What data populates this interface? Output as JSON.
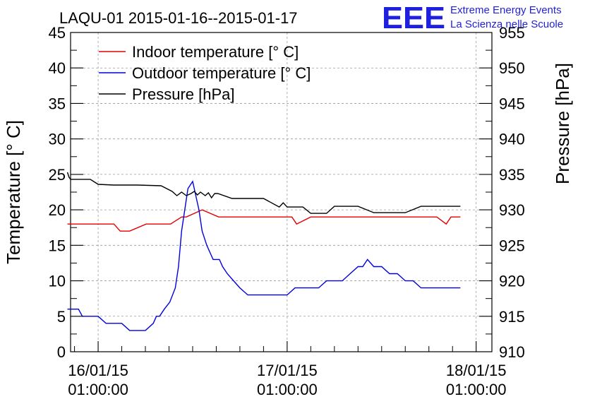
{
  "chart_data": {
    "type": "line",
    "title": "LAQU-01 2015-01-16--2015-01-17",
    "ylabel": "Temperature [° C]",
    "y2label": "Pressure [hPa]",
    "xlabel": "",
    "ylim": [
      0,
      45
    ],
    "y2lim": [
      910,
      955
    ],
    "xlim": [
      -2.5,
      51
    ],
    "x_unit": "hours since 16/01/15 00:00",
    "grid": true,
    "legend_position": "top-left",
    "y_ticks": [
      "0",
      "5",
      "10",
      "15",
      "20",
      "25",
      "30",
      "35",
      "40",
      "45"
    ],
    "y2_ticks": [
      "910",
      "915",
      "920",
      "925",
      "930",
      "935",
      "940",
      "945",
      "950",
      "955"
    ],
    "x_ticks": [
      {
        "x": 1,
        "date": "16/01/15",
        "time": "01:00:00"
      },
      {
        "x": 25,
        "date": "17/01/15",
        "time": "01:00:00"
      },
      {
        "x": 49,
        "date": "18/01/15",
        "time": "01:00:00"
      }
    ],
    "series": [
      {
        "name": "Indoor temperature [° C]",
        "color": "#e00000",
        "axis": "left",
        "x": [
          -2.9,
          0,
          3,
          3.8,
          5,
          7.1,
          10.2,
          11.6,
          12.2,
          14.2,
          16.3,
          25.6,
          26.2,
          28,
          30,
          34,
          38,
          42,
          44,
          45.2,
          45.8,
          47
        ],
        "values": [
          18,
          18,
          18,
          17,
          17,
          18,
          18,
          19,
          19,
          20,
          19,
          19,
          18,
          19,
          19,
          19,
          19,
          19,
          19,
          18,
          19,
          19
        ]
      },
      {
        "name": "Outdoor temperature [° C]",
        "color": "#0000e0",
        "axis": "left",
        "x": [
          -2.9,
          -1.5,
          -1,
          0,
          1,
          2,
          3,
          4,
          5,
          6,
          7,
          8,
          8.4,
          8.8,
          9.4,
          10.1,
          10.8,
          11.2,
          11.6,
          12,
          12.4,
          13,
          13.8,
          14.2,
          14.8,
          15.2,
          15.6,
          16,
          16.4,
          16.8,
          17.4,
          18.2,
          19,
          20,
          21,
          22,
          23,
          24,
          25,
          26,
          27,
          28,
          29,
          30,
          31,
          32,
          33,
          34,
          34.6,
          35.2,
          36,
          37,
          38,
          39,
          40,
          41,
          42,
          43,
          44,
          45,
          46,
          47
        ],
        "values": [
          6,
          6,
          5,
          5,
          5,
          4,
          4,
          4,
          3,
          3,
          3,
          4,
          5,
          5,
          6,
          7,
          9,
          12,
          17,
          20,
          23,
          24,
          20,
          17,
          15,
          14,
          13,
          13,
          13,
          12,
          11,
          10,
          9,
          8,
          8,
          8,
          8,
          8,
          8,
          9,
          9,
          9,
          9,
          10,
          10,
          10,
          11,
          12,
          12,
          13,
          12,
          12,
          11,
          11,
          10,
          10,
          9,
          9,
          9,
          9,
          9,
          9
        ]
      },
      {
        "name": "Pressure [hPa]",
        "color": "#000000",
        "axis": "right",
        "x": [
          -2.9,
          -2.7,
          -2.5,
          0,
          1,
          3,
          6,
          9,
          10.4,
          11,
          11.6,
          12.2,
          12.8,
          13.2,
          13.6,
          14,
          14.6,
          15,
          15.4,
          15.8,
          16.2,
          18,
          22,
          24,
          24.5,
          25,
          27,
          28,
          30,
          31,
          32,
          34,
          36,
          38,
          40,
          42,
          44,
          47
        ],
        "values": [
          935.3,
          934.6,
          934.3,
          934.3,
          933.6,
          933.5,
          933.5,
          933.4,
          932.6,
          932,
          932.5,
          932,
          932.3,
          932.6,
          932.1,
          932.5,
          932,
          932.4,
          931.7,
          932.3,
          932.3,
          931.6,
          931.6,
          930.4,
          931,
          930.4,
          930.4,
          929.5,
          929.5,
          930.5,
          930.5,
          930.5,
          929.6,
          929.6,
          929.6,
          930.5,
          930.5,
          930.5
        ]
      }
    ]
  },
  "logo": {
    "mark": "EEE",
    "line1": "Extreme Energy Events",
    "line2": "La Scienza nelle Scuole",
    "color": "#1f1fe0"
  }
}
